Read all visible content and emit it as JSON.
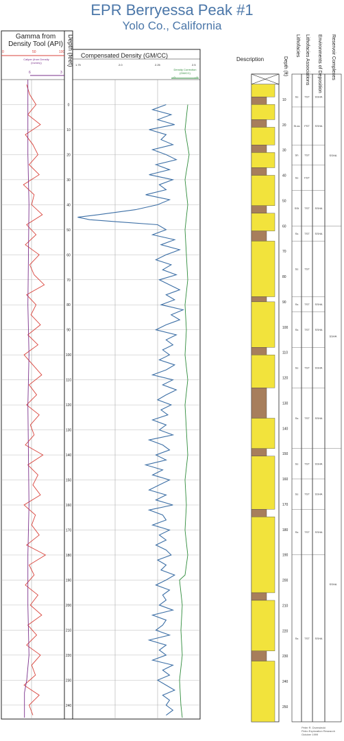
{
  "title": "EPR Berryessa Peak #1",
  "subtitle": "Yolo Co., California",
  "gamma_track": {
    "label_line1": "Gamma from",
    "label_line2": "Density Tool (API)",
    "scale_min": "0",
    "scale_mid": "50",
    "scale_max": "100",
    "caliper_label": "Caliper (from Density (inches))",
    "caliper_min": "6",
    "caliper_max": "3",
    "gamma_color": "#d9433b",
    "caliper_color": "#7a2f8a"
  },
  "depth_header": "Depth (feet)",
  "density_track": {
    "label": "Compensated Density (GM/CC)",
    "scale": [
      "1.75",
      "2.0",
      "2.25",
      "2.5"
    ],
    "correction_label": "Density Correction (GM/CC)",
    "correction_min": "-.0",
    "correction_max": "-.0",
    "density_color": "#3b6ea5",
    "correction_color": "#2e8b3a"
  },
  "description_header": "Description",
  "columns": {
    "depth_ft": "Depth (ft)",
    "lithofacies": "Lithofacies",
    "lithofacies_associations": "Lithofacies Associations",
    "environments": "Environments of Deposition",
    "reservoir": "Reservoir Complexes"
  },
  "credit": [
    "Peter R. Drzewiecki",
    "Petro Exploration Research",
    "October 1999"
  ],
  "chart_data": {
    "type": "line",
    "depth_ticks_feet": [
      0,
      10,
      20,
      30,
      40,
      50,
      60,
      70,
      80,
      90,
      100,
      110,
      120,
      130,
      140,
      150,
      160,
      170,
      180,
      190,
      200,
      210,
      220,
      230,
      240
    ],
    "log_depth_range": [
      -10,
      245
    ],
    "gamma_range": [
      0,
      100
    ],
    "density_range": [
      1.75,
      2.5
    ],
    "series": [
      {
        "name": "Gamma",
        "depth": [
          -8,
          -4,
          0,
          4,
          8,
          12,
          16,
          20,
          24,
          28,
          32,
          36,
          40,
          44,
          48,
          52,
          56,
          60,
          64,
          68,
          72,
          76,
          80,
          84,
          88,
          92,
          96,
          100,
          104,
          108,
          112,
          116,
          120,
          124,
          128,
          132,
          136,
          140,
          144,
          148,
          152,
          156,
          160,
          164,
          168,
          172,
          176,
          180,
          184,
          188,
          192,
          196,
          200,
          204,
          208,
          212,
          216,
          220,
          224,
          228,
          232,
          236,
          240,
          244
        ],
        "values": [
          40,
          45,
          55,
          42,
          62,
          38,
          50,
          58,
          44,
          60,
          35,
          52,
          48,
          65,
          40,
          55,
          38,
          60,
          45,
          52,
          68,
          40,
          55,
          47,
          62,
          42,
          58,
          36,
          50,
          64,
          44,
          56,
          40,
          60,
          46,
          52,
          38,
          66,
          42,
          58,
          50,
          62,
          36,
          54,
          48,
          60,
          40,
          70,
          44,
          52,
          38,
          58,
          46,
          64,
          42,
          56,
          40,
          62,
          48,
          54,
          36,
          60,
          44,
          50
        ]
      },
      {
        "name": "Caliper",
        "depth": [
          -10,
          20,
          40,
          60,
          80,
          100,
          120,
          140,
          160,
          180,
          200,
          220,
          230,
          235,
          245
        ],
        "values": [
          6.2,
          6.2,
          6.1,
          6.15,
          6.2,
          6.1,
          6.2,
          6.15,
          6.1,
          6.2,
          6.2,
          6.1,
          6.3,
          6.5,
          6.5
        ]
      },
      {
        "name": "Compensated Density",
        "depth": [
          0,
          2,
          4,
          6,
          8,
          10,
          12,
          14,
          16,
          18,
          20,
          22,
          24,
          26,
          28,
          30,
          32,
          34,
          36,
          38,
          40,
          42,
          44,
          45,
          46,
          47,
          48,
          50,
          52,
          54,
          56,
          58,
          60,
          62,
          64,
          66,
          68,
          70,
          72,
          74,
          76,
          78,
          80,
          82,
          84,
          86,
          88,
          90,
          92,
          94,
          96,
          98,
          100,
          102,
          104,
          106,
          108,
          110,
          112,
          114,
          116,
          118,
          120,
          122,
          124,
          126,
          128,
          130,
          132,
          134,
          136,
          138,
          140,
          142,
          144,
          146,
          148,
          150,
          152,
          154,
          156,
          158,
          160,
          162,
          164,
          166,
          168,
          170,
          172,
          174,
          176,
          178,
          180,
          182,
          184,
          186,
          188,
          190,
          192,
          194,
          196,
          198,
          200,
          202,
          204,
          206,
          208,
          210,
          212,
          214,
          216,
          218,
          220,
          222,
          224,
          226,
          228,
          230,
          232,
          234,
          236,
          238,
          240,
          242,
          244
        ],
        "values": [
          2.3,
          2.22,
          2.33,
          2.25,
          2.35,
          2.2,
          2.3,
          2.27,
          2.34,
          2.22,
          2.3,
          2.36,
          2.24,
          2.32,
          2.2,
          2.34,
          2.26,
          2.3,
          2.18,
          2.32,
          2.25,
          2.12,
          1.9,
          1.78,
          1.85,
          2.05,
          2.25,
          2.3,
          2.22,
          2.35,
          2.27,
          2.38,
          2.3,
          2.24,
          2.33,
          2.28,
          2.36,
          2.26,
          2.32,
          2.38,
          2.3,
          2.35,
          2.27,
          2.4,
          2.33,
          2.38,
          2.3,
          2.24,
          2.36,
          2.3,
          2.34,
          2.28,
          2.32,
          2.26,
          2.35,
          2.3,
          2.22,
          2.34,
          2.28,
          2.36,
          2.3,
          2.25,
          2.33,
          2.27,
          2.31,
          2.22,
          2.3,
          2.26,
          2.34,
          2.2,
          2.28,
          2.32,
          2.24,
          2.3,
          2.18,
          2.28,
          2.22,
          2.32,
          2.26,
          2.2,
          2.3,
          2.24,
          2.34,
          2.2,
          2.28,
          2.3,
          2.22,
          2.32,
          2.26,
          2.3,
          2.24,
          2.3,
          2.33,
          2.25,
          2.3,
          2.27,
          2.35,
          2.3,
          2.24,
          2.32,
          2.28,
          2.3,
          2.26,
          2.34,
          2.22,
          2.3,
          2.28,
          2.24,
          2.32,
          2.2,
          2.3,
          2.26,
          2.3,
          2.22,
          2.34,
          2.28,
          2.32,
          2.25,
          2.3,
          2.35,
          2.28,
          2.32,
          2.3,
          2.34,
          2.3
        ]
      },
      {
        "name": "Density Correction",
        "depth": [
          0,
          10,
          20,
          30,
          40,
          50,
          60,
          70,
          80,
          90,
          100,
          110,
          120,
          130,
          140,
          150,
          160,
          170,
          180,
          188,
          190,
          200,
          210,
          220,
          230,
          240,
          245
        ],
        "values": [
          2.51,
          2.5,
          2.515,
          2.5,
          2.51,
          2.5,
          2.505,
          2.51,
          2.5,
          2.505,
          2.5,
          2.51,
          2.5,
          2.505,
          2.51,
          2.5,
          2.505,
          2.5,
          2.51,
          2.5,
          2.48,
          2.49,
          2.485,
          2.49,
          2.48,
          2.485,
          2.49
        ]
      }
    ]
  },
  "lithology_depth_ticks": [
    "10",
    "20",
    "30",
    "40",
    "50",
    "60",
    "70",
    "80",
    "90",
    "100",
    "110",
    "120",
    "130",
    "140",
    "150",
    "160",
    "170",
    "180",
    "190",
    "200",
    "210",
    "220",
    "230",
    "240",
    "250"
  ],
  "lithology_range": [
    0,
    256
  ],
  "lithology_beds": [
    {
      "top": 0,
      "bottom": 4,
      "type": "X"
    },
    {
      "top": 4,
      "bottom": 9,
      "type": "sand"
    },
    {
      "top": 9,
      "bottom": 12,
      "type": "mud"
    },
    {
      "top": 12,
      "bottom": 18,
      "type": "sand"
    },
    {
      "top": 18,
      "bottom": 21,
      "type": "mud"
    },
    {
      "top": 21,
      "bottom": 28,
      "type": "sand"
    },
    {
      "top": 28,
      "bottom": 31,
      "type": "mud"
    },
    {
      "top": 31,
      "bottom": 37,
      "type": "sand"
    },
    {
      "top": 37,
      "bottom": 40,
      "type": "mud"
    },
    {
      "top": 40,
      "bottom": 52,
      "type": "sand"
    },
    {
      "top": 52,
      "bottom": 55,
      "type": "mud"
    },
    {
      "top": 55,
      "bottom": 62,
      "type": "sand"
    },
    {
      "top": 62,
      "bottom": 66,
      "type": "mud"
    },
    {
      "top": 66,
      "bottom": 88,
      "type": "sand"
    },
    {
      "top": 88,
      "bottom": 90,
      "type": "mud"
    },
    {
      "top": 90,
      "bottom": 108,
      "type": "sand"
    },
    {
      "top": 108,
      "bottom": 111,
      "type": "mud"
    },
    {
      "top": 111,
      "bottom": 124,
      "type": "sand"
    },
    {
      "top": 124,
      "bottom": 136,
      "type": "mud"
    },
    {
      "top": 136,
      "bottom": 148,
      "type": "sand"
    },
    {
      "top": 148,
      "bottom": 151,
      "type": "mud"
    },
    {
      "top": 151,
      "bottom": 172,
      "type": "sand"
    },
    {
      "top": 172,
      "bottom": 175,
      "type": "mud"
    },
    {
      "top": 175,
      "bottom": 205,
      "type": "sand"
    },
    {
      "top": 205,
      "bottom": 208,
      "type": "mud"
    },
    {
      "top": 208,
      "bottom": 228,
      "type": "sand"
    },
    {
      "top": 228,
      "bottom": 232,
      "type": "mud"
    },
    {
      "top": 232,
      "bottom": 256,
      "type": "sand"
    }
  ],
  "lithofacies_rows": [
    {
      "top": 5,
      "bottom": 13,
      "facies": "Ss",
      "assoc": "TST",
      "env": "SSHA"
    },
    {
      "top": 13,
      "bottom": 28,
      "facies": "St-ss",
      "assoc": "FST",
      "env": "SSHA"
    },
    {
      "top": 28,
      "bottom": 36,
      "facies": "Sh",
      "assoc": "TST",
      "env": ""
    },
    {
      "top": 36,
      "bottom": 46,
      "facies": "Ss",
      "assoc": "FST",
      "env": ""
    },
    {
      "top": 46,
      "bottom": 60,
      "facies": "SSt",
      "assoc": "TST",
      "env": "SSHA"
    },
    {
      "top": 60,
      "bottom": 66,
      "facies": "Ss",
      "assoc": "TST",
      "env": "SSHA"
    },
    {
      "top": 66,
      "bottom": 88,
      "facies": "Ss",
      "assoc": "TST",
      "env": ""
    },
    {
      "top": 88,
      "bottom": 94,
      "facies": "Ss",
      "assoc": "TST",
      "env": "SSHA"
    },
    {
      "top": 94,
      "bottom": 108,
      "facies": "Ss",
      "assoc": "TST",
      "env": "SSHA"
    },
    {
      "top": 108,
      "bottom": 124,
      "facies": "Ss",
      "assoc": "TST",
      "env": "SSHA"
    },
    {
      "top": 124,
      "bottom": 148,
      "facies": "Ss",
      "assoc": "TST",
      "env": "SSHA"
    },
    {
      "top": 148,
      "bottom": 160,
      "facies": "Ss",
      "assoc": "TST",
      "env": "SSHA"
    },
    {
      "top": 160,
      "bottom": 172,
      "facies": "Ss",
      "assoc": "TST",
      "env": "SSHA"
    },
    {
      "top": 172,
      "bottom": 190,
      "facies": "Ss",
      "assoc": "TST",
      "env": "SSHA"
    },
    {
      "top": 190,
      "bottom": 256,
      "facies": "Ss",
      "assoc": "TST",
      "env": "SSHA"
    }
  ],
  "reservoir_rows": [
    {
      "top": 5,
      "bottom": 60,
      "label": "SSHA"
    },
    {
      "top": 60,
      "bottom": 148,
      "label": "SSHA"
    },
    {
      "top": 148,
      "bottom": 256,
      "label": "SSHA"
    }
  ]
}
